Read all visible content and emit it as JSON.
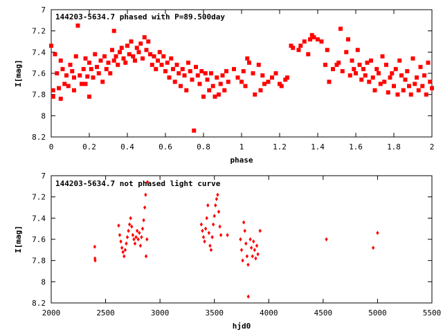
{
  "chart_data": [
    {
      "type": "scatter",
      "title": "144203-5634.7 phased with P=89.500day",
      "xlabel": "phase",
      "ylabel": "I[mag]",
      "xlim": [
        0,
        2
      ],
      "ylim": [
        8.2,
        7.0
      ],
      "y_inverted": true,
      "xticks": [
        "0",
        "0.2",
        "0.4",
        "0.6",
        "0.8",
        "1",
        "1.2",
        "1.4",
        "1.6",
        "1.8",
        "2"
      ],
      "yticks": [
        "7",
        "7.2",
        "7.4",
        "7.6",
        "7.8",
        "8",
        "8.2"
      ],
      "grid": false,
      "marker_color": "#ff0000",
      "points": [
        [
          0.0,
          7.34
        ],
        [
          0.01,
          7.76
        ],
        [
          0.01,
          7.82
        ],
        [
          0.02,
          7.42
        ],
        [
          0.03,
          7.6
        ],
        [
          0.04,
          7.74
        ],
        [
          0.05,
          7.48
        ],
        [
          0.05,
          7.84
        ],
        [
          0.06,
          7.56
        ],
        [
          0.07,
          7.7
        ],
        [
          0.08,
          7.62
        ],
        [
          0.09,
          7.72
        ],
        [
          0.1,
          7.52
        ],
        [
          0.11,
          7.58
        ],
        [
          0.12,
          7.64
        ],
        [
          0.12,
          7.76
        ],
        [
          0.13,
          7.44
        ],
        [
          0.14,
          7.15
        ],
        [
          0.15,
          7.62
        ],
        [
          0.16,
          7.7
        ],
        [
          0.17,
          7.56
        ],
        [
          0.18,
          7.46
        ],
        [
          0.18,
          7.7
        ],
        [
          0.19,
          7.63
        ],
        [
          0.2,
          7.82
        ],
        [
          0.2,
          7.5
        ],
        [
          0.21,
          7.56
        ],
        [
          0.22,
          7.64
        ],
        [
          0.23,
          7.42
        ],
        [
          0.24,
          7.54
        ],
        [
          0.25,
          7.6
        ],
        [
          0.26,
          7.48
        ],
        [
          0.27,
          7.68
        ],
        [
          0.28,
          7.44
        ],
        [
          0.29,
          7.56
        ],
        [
          0.3,
          7.5
        ],
        [
          0.31,
          7.6
        ],
        [
          0.32,
          7.38
        ],
        [
          0.33,
          7.48
        ],
        [
          0.33,
          7.2
        ],
        [
          0.34,
          7.44
        ],
        [
          0.35,
          7.52
        ],
        [
          0.36,
          7.4
        ],
        [
          0.37,
          7.36
        ],
        [
          0.38,
          7.46
        ],
        [
          0.39,
          7.5
        ],
        [
          0.4,
          7.34
        ],
        [
          0.41,
          7.42
        ],
        [
          0.42,
          7.3
        ],
        [
          0.43,
          7.44
        ],
        [
          0.44,
          7.48
        ],
        [
          0.45,
          7.36
        ],
        [
          0.46,
          7.4
        ],
        [
          0.47,
          7.32
        ],
        [
          0.48,
          7.46
        ],
        [
          0.49,
          7.26
        ],
        [
          0.5,
          7.38
        ],
        [
          0.51,
          7.3
        ],
        [
          0.52,
          7.42
        ],
        [
          0.53,
          7.52
        ],
        [
          0.54,
          7.44
        ],
        [
          0.55,
          7.56
        ],
        [
          0.56,
          7.48
        ],
        [
          0.57,
          7.4
        ],
        [
          0.58,
          7.52
        ],
        [
          0.59,
          7.44
        ],
        [
          0.6,
          7.58
        ],
        [
          0.61,
          7.5
        ],
        [
          0.62,
          7.64
        ],
        [
          0.63,
          7.46
        ],
        [
          0.64,
          7.56
        ],
        [
          0.65,
          7.68
        ],
        [
          0.66,
          7.52
        ],
        [
          0.67,
          7.6
        ],
        [
          0.68,
          7.72
        ],
        [
          0.69,
          7.56
        ],
        [
          0.7,
          7.62
        ],
        [
          0.71,
          7.76
        ],
        [
          0.72,
          7.5
        ],
        [
          0.73,
          7.58
        ],
        [
          0.74,
          7.66
        ],
        [
          0.75,
          8.14
        ],
        [
          0.76,
          7.54
        ],
        [
          0.77,
          7.62
        ],
        [
          0.78,
          7.7
        ],
        [
          0.79,
          7.58
        ],
        [
          0.8,
          7.82
        ],
        [
          0.81,
          7.6
        ],
        [
          0.82,
          7.66
        ],
        [
          0.83,
          7.76
        ],
        [
          0.84,
          7.6
        ],
        [
          0.85,
          7.72
        ],
        [
          0.86,
          7.82
        ],
        [
          0.87,
          7.64
        ],
        [
          0.88,
          7.8
        ],
        [
          0.89,
          7.7
        ],
        [
          0.9,
          7.62
        ],
        [
          0.91,
          7.76
        ],
        [
          0.92,
          7.58
        ],
        [
          0.93,
          7.68
        ],
        [
          0.96,
          7.56
        ],
        [
          0.98,
          7.64
        ],
        [
          1.0,
          7.68
        ],
        [
          1.01,
          7.58
        ],
        [
          1.02,
          7.72
        ],
        [
          1.03,
          7.46
        ],
        [
          1.04,
          7.5
        ],
        [
          1.06,
          7.6
        ],
        [
          1.07,
          7.8
        ],
        [
          1.09,
          7.52
        ],
        [
          1.1,
          7.76
        ],
        [
          1.11,
          7.62
        ],
        [
          1.12,
          7.7
        ],
        [
          1.14,
          7.68
        ],
        [
          1.16,
          7.64
        ],
        [
          1.18,
          7.6
        ],
        [
          1.2,
          7.7
        ],
        [
          1.21,
          7.72
        ],
        [
          1.23,
          7.66
        ],
        [
          1.24,
          7.64
        ],
        [
          1.26,
          7.34
        ],
        [
          1.27,
          7.36
        ],
        [
          1.3,
          7.38
        ],
        [
          1.31,
          7.34
        ],
        [
          1.33,
          7.3
        ],
        [
          1.35,
          7.42
        ],
        [
          1.36,
          7.28
        ],
        [
          1.37,
          7.24
        ],
        [
          1.38,
          7.26
        ],
        [
          1.4,
          7.28
        ],
        [
          1.42,
          7.3
        ],
        [
          1.44,
          7.52
        ],
        [
          1.45,
          7.38
        ],
        [
          1.46,
          7.68
        ],
        [
          1.48,
          7.56
        ],
        [
          1.5,
          7.52
        ],
        [
          1.51,
          7.5
        ],
        [
          1.52,
          7.18
        ],
        [
          1.53,
          7.58
        ],
        [
          1.55,
          7.4
        ],
        [
          1.56,
          7.28
        ],
        [
          1.57,
          7.62
        ],
        [
          1.58,
          7.48
        ],
        [
          1.59,
          7.56
        ],
        [
          1.6,
          7.6
        ],
        [
          1.61,
          7.38
        ],
        [
          1.62,
          7.52
        ],
        [
          1.63,
          7.66
        ],
        [
          1.64,
          7.56
        ],
        [
          1.65,
          7.62
        ],
        [
          1.66,
          7.5
        ],
        [
          1.67,
          7.68
        ],
        [
          1.68,
          7.48
        ],
        [
          1.69,
          7.64
        ],
        [
          1.7,
          7.76
        ],
        [
          1.71,
          7.56
        ],
        [
          1.72,
          7.6
        ],
        [
          1.73,
          7.7
        ],
        [
          1.74,
          7.44
        ],
        [
          1.75,
          7.68
        ],
        [
          1.76,
          7.52
        ],
        [
          1.77,
          7.78
        ],
        [
          1.78,
          7.64
        ],
        [
          1.79,
          7.6
        ],
        [
          1.8,
          7.72
        ],
        [
          1.81,
          7.56
        ],
        [
          1.82,
          7.8
        ],
        [
          1.83,
          7.48
        ],
        [
          1.84,
          7.62
        ],
        [
          1.85,
          7.76
        ],
        [
          1.86,
          7.66
        ],
        [
          1.87,
          7.58
        ],
        [
          1.88,
          7.72
        ],
        [
          1.89,
          7.8
        ],
        [
          1.9,
          7.46
        ],
        [
          1.91,
          7.7
        ],
        [
          1.92,
          7.64
        ],
        [
          1.93,
          7.76
        ],
        [
          1.94,
          7.54
        ],
        [
          1.95,
          7.72
        ],
        [
          1.96,
          7.62
        ],
        [
          1.97,
          7.8
        ],
        [
          1.98,
          7.5
        ],
        [
          1.99,
          7.68
        ],
        [
          2.0,
          7.74
        ]
      ]
    },
    {
      "type": "scatter",
      "title": "144203-5634.7 not phased light curve",
      "xlabel": "hjd0",
      "ylabel": "I[mag]",
      "xlim": [
        2000,
        5500
      ],
      "ylim": [
        8.2,
        7.0
      ],
      "y_inverted": true,
      "xticks": [
        "2000",
        "2500",
        "3000",
        "3500",
        "4000",
        "4500",
        "5000",
        "5500"
      ],
      "yticks": [
        "7",
        "7.2",
        "7.4",
        "7.6",
        "7.8",
        "8",
        "8.2"
      ],
      "grid": false,
      "marker_color": "#ff0000",
      "points": [
        [
          2400,
          7.67
        ],
        [
          2402,
          7.78
        ],
        [
          2404,
          7.8
        ],
        [
          2620,
          7.47
        ],
        [
          2630,
          7.56
        ],
        [
          2640,
          7.62
        ],
        [
          2650,
          7.68
        ],
        [
          2660,
          7.72
        ],
        [
          2670,
          7.76
        ],
        [
          2680,
          7.7
        ],
        [
          2690,
          7.64
        ],
        [
          2700,
          7.58
        ],
        [
          2710,
          7.52
        ],
        [
          2720,
          7.46
        ],
        [
          2730,
          7.4
        ],
        [
          2740,
          7.48
        ],
        [
          2750,
          7.56
        ],
        [
          2760,
          7.6
        ],
        [
          2770,
          7.64
        ],
        [
          2780,
          7.58
        ],
        [
          2790,
          7.52
        ],
        [
          2800,
          7.6
        ],
        [
          2810,
          7.54
        ],
        [
          2820,
          7.66
        ],
        [
          2830,
          7.58
        ],
        [
          2840,
          7.5
        ],
        [
          2850,
          7.42
        ],
        [
          2860,
          7.3
        ],
        [
          2868,
          7.18
        ],
        [
          2872,
          7.76
        ],
        [
          2880,
          7.6
        ],
        [
          2885,
          7.06
        ],
        [
          3380,
          7.46
        ],
        [
          3390,
          7.52
        ],
        [
          3400,
          7.58
        ],
        [
          3410,
          7.62
        ],
        [
          3420,
          7.5
        ],
        [
          3430,
          7.4
        ],
        [
          3440,
          7.28
        ],
        [
          3450,
          7.54
        ],
        [
          3460,
          7.66
        ],
        [
          3470,
          7.7
        ],
        [
          3480,
          7.58
        ],
        [
          3490,
          7.46
        ],
        [
          3500,
          7.38
        ],
        [
          3510,
          7.28
        ],
        [
          3520,
          7.22
        ],
        [
          3530,
          7.18
        ],
        [
          3540,
          7.34
        ],
        [
          3550,
          7.48
        ],
        [
          3560,
          7.56
        ],
        [
          3620,
          7.56
        ],
        [
          3740,
          7.6
        ],
        [
          3750,
          7.7
        ],
        [
          3760,
          7.8
        ],
        [
          3770,
          7.44
        ],
        [
          3780,
          7.52
        ],
        [
          3790,
          7.64
        ],
        [
          3800,
          7.76
        ],
        [
          3810,
          7.84
        ],
        [
          3812,
          8.14
        ],
        [
          3830,
          7.6
        ],
        [
          3840,
          7.68
        ],
        [
          3850,
          7.76
        ],
        [
          3860,
          7.62
        ],
        [
          3870,
          7.7
        ],
        [
          3880,
          7.78
        ],
        [
          3890,
          7.66
        ],
        [
          3900,
          7.74
        ],
        [
          3920,
          7.52
        ],
        [
          4530,
          7.6
        ],
        [
          4960,
          7.68
        ],
        [
          5000,
          7.54
        ]
      ]
    }
  ]
}
